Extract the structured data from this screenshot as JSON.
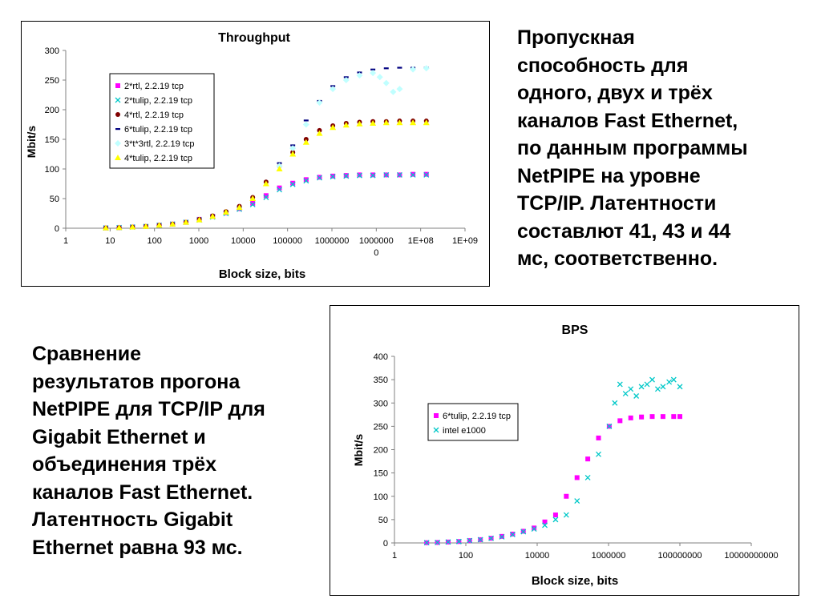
{
  "text_right": {
    "lines": [
      "Пропускная",
      "способность для",
      "одного, двух и трёх",
      "каналов Fast Ethernet,",
      "по данным программы",
      "NetPIPE на уровне",
      "TCP/IP. Латентности",
      "составлют 41, 43 и 44",
      "мс, соответственно."
    ]
  },
  "text_left": {
    "lines": [
      "Сравнение",
      "результатов прогона",
      "NetPIPE для TCP/IP для",
      "Gigabit Ethernet и",
      "объединения трёх",
      "каналов Fast Ethernet.",
      "Латентность Gigabit",
      "Ethernet равна 93 мс."
    ]
  },
  "chart_data": [
    {
      "type": "scatter",
      "title": "Throughput",
      "xlabel": "Block size, bits",
      "ylabel": "Mbit/s",
      "x_scale": "log",
      "xlim": [
        1,
        1000000000
      ],
      "ylim": [
        0,
        300
      ],
      "y_ticks": [
        0,
        50,
        100,
        150,
        200,
        250,
        300
      ],
      "x_tick_labels": [
        "1",
        "10",
        "100",
        "1000",
        "10000",
        "100000",
        "1000000",
        "10000000",
        "1E+08",
        "1E+09"
      ],
      "grid": false,
      "legend_position": "top-left",
      "series": [
        {
          "name": "2*rtl, 2.2.19 tcp",
          "color": "#ff00ff",
          "marker": "square",
          "x": [
            8,
            16,
            32,
            64,
            128,
            256,
            512,
            1024,
            2048,
            4096,
            8192,
            16384,
            32768,
            65536,
            131072,
            262144,
            524288,
            1048576,
            2097152,
            4194304,
            8388608,
            16777216,
            33554432,
            67108864,
            134217728
          ],
          "y": [
            0.5,
            1,
            2,
            3,
            5,
            7,
            10,
            15,
            20,
            26,
            33,
            42,
            55,
            68,
            76,
            82,
            86,
            88,
            89,
            90,
            90,
            90,
            90,
            91,
            91
          ]
        },
        {
          "name": "2*tulip, 2.2.19 tcp",
          "color": "#00c8c8",
          "marker": "x",
          "x": [
            8,
            16,
            32,
            64,
            128,
            256,
            512,
            1024,
            2048,
            4096,
            8192,
            16384,
            32768,
            65536,
            131072,
            262144,
            524288,
            1048576,
            2097152,
            4194304,
            8388608,
            16777216,
            33554432,
            67108864,
            134217728
          ],
          "y": [
            0.5,
            1,
            2,
            3,
            5,
            7,
            10,
            14,
            19,
            25,
            32,
            40,
            52,
            65,
            74,
            80,
            85,
            87,
            88,
            89,
            89,
            90,
            90,
            90,
            90
          ]
        },
        {
          "name": "4*rtl, 2.2.19 tcp",
          "color": "#800000",
          "marker": "circle",
          "x": [
            8,
            16,
            32,
            64,
            128,
            256,
            512,
            1024,
            2048,
            4096,
            8192,
            16384,
            32768,
            65536,
            131072,
            262144,
            524288,
            1048576,
            2097152,
            4194304,
            8388608,
            16777216,
            33554432,
            67108864,
            134217728
          ],
          "y": [
            0.5,
            1,
            2,
            3,
            5,
            7,
            10,
            15,
            21,
            28,
            37,
            52,
            78,
            105,
            128,
            150,
            165,
            173,
            177,
            179,
            180,
            180,
            181,
            181,
            181
          ]
        },
        {
          "name": "6*tulip, 2.2.19 tcp",
          "color": "#000080",
          "marker": "dash",
          "x": [
            65536,
            131072,
            262144,
            524288,
            1048576,
            2097152,
            4194304,
            8388608,
            16777216,
            33554432,
            67108864,
            134217728
          ],
          "y": [
            110,
            140,
            182,
            215,
            240,
            255,
            263,
            268,
            270,
            271,
            271,
            271
          ]
        },
        {
          "name": "3*t*3rtl, 2.2.19 tcp",
          "color": "#c0ffff",
          "marker": "diamond",
          "x": [
            65536,
            131072,
            262144,
            524288,
            1048576,
            2097152,
            4194304,
            8388608,
            12000000,
            16777216,
            24000000,
            33554432,
            67108864,
            134217728
          ],
          "y": [
            105,
            135,
            175,
            212,
            235,
            250,
            258,
            262,
            255,
            245,
            230,
            235,
            268,
            270
          ]
        },
        {
          "name": "4*tulip, 2.2.19 tcp",
          "color": "#ffff00",
          "marker": "triangle",
          "x": [
            8,
            16,
            32,
            64,
            128,
            256,
            512,
            1024,
            2048,
            4096,
            8192,
            16384,
            32768,
            65536,
            131072,
            262144,
            524288,
            1048576,
            2097152,
            4194304,
            8388608,
            16777216,
            33554432,
            67108864,
            134217728
          ],
          "y": [
            0.5,
            1,
            2,
            3,
            5,
            7,
            10,
            14,
            20,
            27,
            35,
            50,
            75,
            100,
            125,
            145,
            160,
            170,
            174,
            176,
            177,
            178,
            178,
            178,
            178
          ]
        }
      ]
    },
    {
      "type": "scatter",
      "title": "BPS",
      "xlabel": "Block size, bits",
      "ylabel": "Mbit/s",
      "x_scale": "log",
      "xlim": [
        1,
        10000000000
      ],
      "ylim": [
        0,
        400
      ],
      "y_ticks": [
        0,
        50,
        100,
        150,
        200,
        250,
        300,
        350,
        400
      ],
      "x_tick_labels": [
        "1",
        "100",
        "10000",
        "1000000",
        "100000000",
        "10000000000"
      ],
      "grid": false,
      "legend_position": "center-left",
      "series": [
        {
          "name": "6*tulip, 2.2.19 tcp",
          "color": "#ff00ff",
          "marker": "square",
          "x": [
            8,
            16,
            32,
            64,
            128,
            256,
            512,
            1024,
            2048,
            4096,
            8192,
            16384,
            32768,
            65536,
            131072,
            262144,
            524288,
            1048576,
            2097152,
            4194304,
            8388608,
            16777216,
            33554432,
            67108864,
            100000000
          ],
          "y": [
            0.5,
            1,
            2,
            3,
            5,
            7,
            10,
            14,
            19,
            25,
            32,
            45,
            60,
            100,
            140,
            180,
            225,
            250,
            262,
            268,
            270,
            271,
            271,
            271,
            271
          ]
        },
        {
          "name": "intel e1000",
          "color": "#00c8c8",
          "marker": "x",
          "x": [
            8,
            16,
            32,
            64,
            128,
            256,
            512,
            1024,
            2048,
            4096,
            8192,
            16384,
            32768,
            65536,
            131072,
            262144,
            524288,
            1048576,
            1500000,
            2097152,
            3000000,
            4194304,
            6000000,
            8388608,
            12000000,
            16777216,
            24000000,
            33554432,
            50000000,
            67108864,
            100000000
          ],
          "y": [
            0.5,
            1,
            2,
            3,
            5,
            7,
            10,
            13,
            18,
            24,
            30,
            38,
            50,
            60,
            90,
            140,
            190,
            250,
            300,
            340,
            320,
            330,
            315,
            335,
            340,
            350,
            330,
            335,
            345,
            350,
            335
          ]
        }
      ]
    }
  ]
}
